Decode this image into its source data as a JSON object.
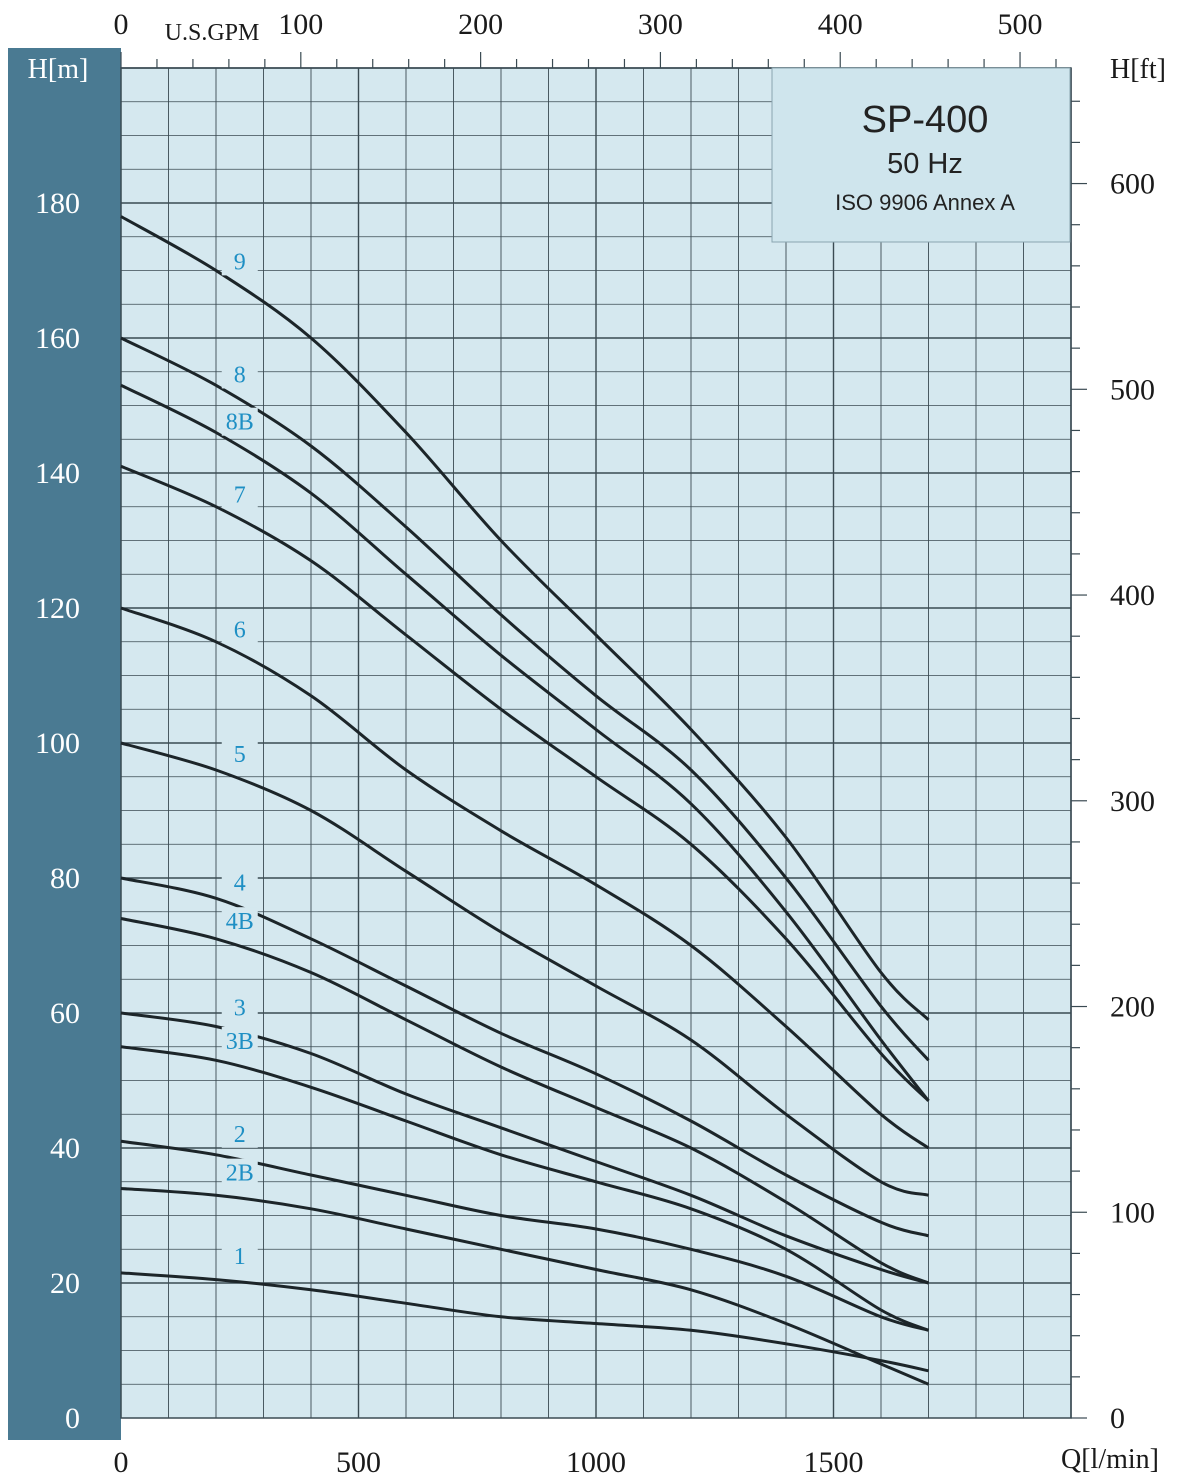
{
  "chart_data": {
    "type": "line",
    "title": "SP-400",
    "subtitle": "50 Hz",
    "standard": "ISO 9906 Annex A",
    "xlabel": "Q[l/min]",
    "x2label": "U.S.GPM",
    "ylabel": "H[m]",
    "y2label": "H[ft]",
    "xlim": [
      0,
      2000
    ],
    "ylim": [
      0,
      200
    ],
    "x_ticks": [
      "0",
      "500",
      "1000",
      "1500"
    ],
    "x2_ticks": [
      "0",
      "100",
      "200",
      "300",
      "400",
      "500"
    ],
    "y_ticks": [
      "0",
      "20",
      "40",
      "60",
      "80",
      "100",
      "120",
      "140",
      "160",
      "180"
    ],
    "y2_ticks": [
      "0",
      "100",
      "200",
      "300",
      "400",
      "500",
      "600"
    ],
    "grid": true,
    "colors": {
      "plot_bg": "#d5e8ef",
      "grid": "#3a4a52",
      "left_band": "#4a7a92",
      "curve": "#1c2529",
      "curve_label": "#1e8fc4",
      "title_box": "#cfe5ed"
    },
    "series": [
      {
        "name": "9",
        "x": [
          0,
          200,
          400,
          600,
          800,
          1000,
          1200,
          1400,
          1600,
          1700
        ],
        "y": [
          178,
          170,
          160,
          146,
          130,
          116,
          102,
          86,
          66,
          59
        ]
      },
      {
        "name": "8",
        "x": [
          0,
          200,
          400,
          600,
          800,
          1000,
          1200,
          1400,
          1600,
          1700
        ],
        "y": [
          160,
          153,
          144,
          132,
          119,
          107,
          96,
          80,
          61,
          53
        ]
      },
      {
        "name": "8B",
        "x": [
          0,
          200,
          400,
          600,
          800,
          1000,
          1200,
          1400,
          1600,
          1700
        ],
        "y": [
          153,
          146,
          137,
          125,
          113,
          102,
          91,
          75,
          56,
          47
        ]
      },
      {
        "name": "7",
        "x": [
          0,
          200,
          400,
          600,
          800,
          1000,
          1200,
          1400,
          1600,
          1700
        ],
        "y": [
          141,
          135,
          127,
          116,
          105,
          95,
          85,
          71,
          54,
          47
        ]
      },
      {
        "name": "6",
        "x": [
          0,
          200,
          400,
          600,
          800,
          1000,
          1200,
          1400,
          1600,
          1700
        ],
        "y": [
          120,
          115,
          107,
          96,
          87,
          79,
          70,
          58,
          45,
          40
        ]
      },
      {
        "name": "5",
        "x": [
          0,
          200,
          400,
          600,
          800,
          1000,
          1200,
          1400,
          1600,
          1700
        ],
        "y": [
          100,
          96,
          90,
          81,
          72,
          64,
          56,
          45,
          35,
          33
        ]
      },
      {
        "name": "4",
        "x": [
          0,
          200,
          400,
          600,
          800,
          1000,
          1200,
          1400,
          1600,
          1700
        ],
        "y": [
          80,
          77,
          71,
          64,
          57,
          51,
          44,
          36,
          29,
          27
        ]
      },
      {
        "name": "4B",
        "x": [
          0,
          200,
          400,
          600,
          800,
          1000,
          1200,
          1400,
          1600,
          1700
        ],
        "y": [
          74,
          71,
          66,
          59,
          52,
          46,
          40,
          32,
          23,
          20
        ]
      },
      {
        "name": "3",
        "x": [
          0,
          200,
          400,
          600,
          800,
          1000,
          1200,
          1400,
          1600,
          1700
        ],
        "y": [
          60,
          58,
          54,
          48,
          43,
          38,
          33,
          27,
          22,
          20
        ]
      },
      {
        "name": "3B",
        "x": [
          0,
          200,
          400,
          600,
          800,
          1000,
          1200,
          1400,
          1600,
          1700
        ],
        "y": [
          55,
          53,
          49,
          44,
          39,
          35,
          31,
          25,
          16,
          13
        ]
      },
      {
        "name": "2",
        "x": [
          0,
          200,
          400,
          600,
          800,
          1000,
          1200,
          1400,
          1600,
          1700
        ],
        "y": [
          41,
          39,
          36,
          33,
          30,
          28,
          25,
          21,
          15,
          13
        ]
      },
      {
        "name": "2B",
        "x": [
          0,
          200,
          400,
          600,
          800,
          1000,
          1200,
          1400,
          1600,
          1700
        ],
        "y": [
          34,
          33,
          31,
          28,
          25,
          22,
          19,
          14,
          8,
          5
        ]
      },
      {
        "name": "1",
        "x": [
          0,
          200,
          400,
          600,
          800,
          1000,
          1200,
          1400,
          1600,
          1700
        ],
        "y": [
          21.5,
          20.5,
          19,
          17,
          15,
          14,
          13,
          11,
          8.5,
          7
        ]
      }
    ]
  }
}
